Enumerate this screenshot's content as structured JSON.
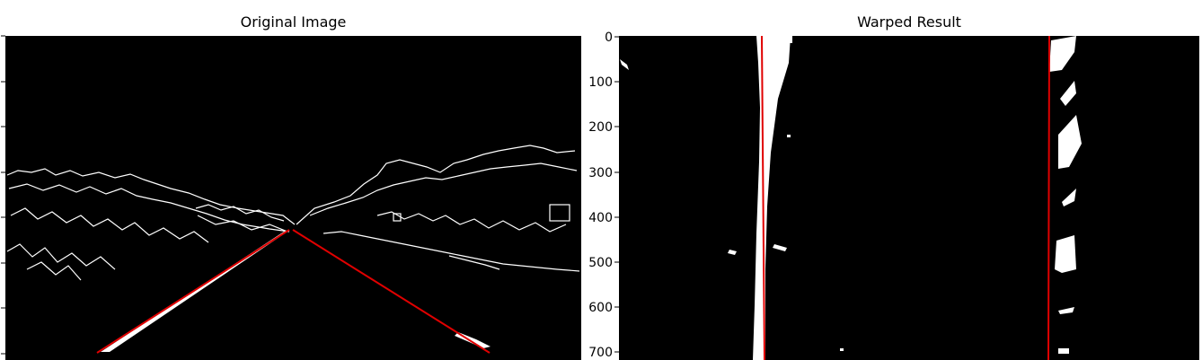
{
  "panels": [
    {
      "id": "left",
      "title": "Original Image",
      "y_ticks": []
    },
    {
      "id": "right",
      "title": "Warped Result",
      "y_ticks": [
        "0",
        "100",
        "200",
        "300",
        "400",
        "500",
        "600",
        "700"
      ]
    }
  ],
  "colors": {
    "background": "#000000",
    "edges": "#ffffff",
    "lane_line": "#e00000"
  }
}
